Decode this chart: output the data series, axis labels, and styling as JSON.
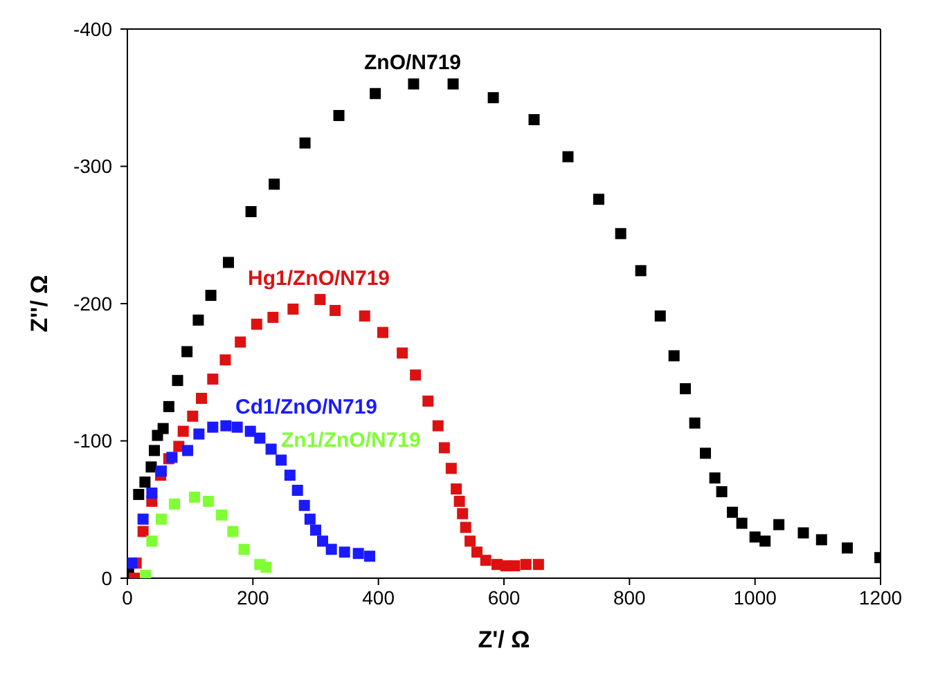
{
  "chart_data": {
    "type": "scatter",
    "xlabel": "Z'/  Ω",
    "ylabel": "Z''/  Ω",
    "xlim": [
      0,
      1200
    ],
    "xticks": [
      0,
      200,
      400,
      600,
      800,
      1000,
      1200
    ],
    "ylim": [
      0,
      -400
    ],
    "yticks": [
      0,
      -100,
      -200,
      -300,
      -400
    ],
    "grid": false,
    "legend": false,
    "marker": "square",
    "series": [
      {
        "name": "ZnO/N719",
        "color": "#000000",
        "x": [
          2,
          18,
          28,
          38,
          43,
          48,
          57,
          66,
          80,
          95,
          113,
          133,
          161,
          197,
          234,
          283,
          337,
          395,
          456,
          519,
          583,
          648,
          702,
          751,
          786,
          818,
          849,
          871,
          889,
          904,
          921,
          936,
          947,
          964,
          979,
          1000,
          1016,
          1038,
          1077,
          1106,
          1147,
          1199
        ],
        "values": [
          -3,
          -61,
          -70,
          -81,
          -93,
          -104,
          -109,
          -125,
          -144,
          -165,
          -188,
          -206,
          -230,
          -267,
          -287,
          -317,
          -337,
          -353,
          -360,
          -360,
          -350,
          -334,
          -307,
          -276,
          -251,
          -224,
          -191,
          -162,
          -138,
          -113,
          -91,
          -73,
          -63,
          -48,
          -40,
          -30,
          -27,
          -39,
          -33,
          -28,
          -22,
          -15
        ]
      },
      {
        "name": "Hg1/ZnO/N719",
        "color": "#dd1111",
        "x": [
          11,
          14,
          25,
          39,
          53,
          66,
          82,
          89,
          104,
          118,
          136,
          156,
          180,
          206,
          232,
          264,
          307,
          331,
          378,
          407,
          438,
          459,
          479,
          495,
          505,
          516,
          524,
          529,
          534,
          539,
          546,
          557,
          571,
          589,
          603,
          617,
          635,
          655
        ],
        "values": [
          0,
          -11,
          -34,
          -56,
          -75,
          -87,
          -96,
          -107,
          -118,
          -131,
          -145,
          -159,
          -172,
          -185,
          -190,
          -196,
          -203,
          -195,
          -191,
          -179,
          -164,
          -148,
          -129,
          -111,
          -95,
          -80,
          -65,
          -56,
          -47,
          -37,
          -27,
          -19,
          -13,
          -10,
          -9,
          -9,
          -10,
          -10
        ]
      },
      {
        "name": "Cd1/ZnO/N719",
        "color": "#1a1aff",
        "x": [
          7,
          25,
          39,
          54,
          71,
          96,
          114,
          136,
          157,
          175,
          196,
          211,
          229,
          245,
          259,
          271,
          282,
          291,
          300,
          311,
          325,
          346,
          368,
          386
        ],
        "values": [
          -11,
          -43,
          -62,
          -78,
          -88,
          -93,
          -105,
          -110,
          -111,
          -110,
          -107,
          -102,
          -94,
          -86,
          -75,
          -64,
          -53,
          -43,
          -35,
          -27,
          -21,
          -19,
          -18,
          -16
        ]
      },
      {
        "name": "Zn1/ZnO/N719",
        "color": "#80ff33",
        "x": [
          29,
          39,
          54,
          75,
          107,
          129,
          150,
          168,
          186,
          211,
          221
        ],
        "values": [
          -2,
          -27,
          -43,
          -54,
          -59,
          -56,
          -46,
          -34,
          -21,
          -10,
          -8
        ]
      }
    ]
  }
}
